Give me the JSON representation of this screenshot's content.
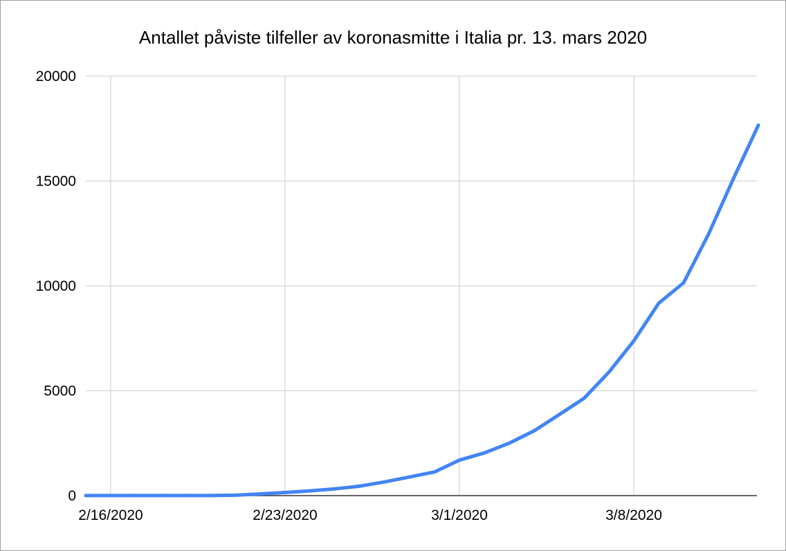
{
  "chart_data": {
    "type": "line",
    "title": "Antallet påviste tilfeller av koronasmitte i Italia pr. 13. mars 2020",
    "xlabel": "",
    "ylabel": "",
    "x_tick_labels": [
      "2/16/2020",
      "2/23/2020",
      "3/1/2020",
      "3/8/2020"
    ],
    "y_tick_labels": [
      "0",
      "5000",
      "10000",
      "15000",
      "20000"
    ],
    "ylim": [
      0,
      20000
    ],
    "grid": true,
    "legend": "none",
    "line_color": "#4285f4",
    "series": [
      {
        "x": [
          "2/15/2020",
          "2/16/2020",
          "2/17/2020",
          "2/18/2020",
          "2/19/2020",
          "2/20/2020",
          "2/21/2020",
          "2/22/2020",
          "2/23/2020",
          "2/24/2020",
          "2/25/2020",
          "2/26/2020",
          "2/27/2020",
          "2/28/2020",
          "2/29/2020",
          "3/1/2020",
          "3/2/2020",
          "3/3/2020",
          "3/4/2020",
          "3/5/2020",
          "3/6/2020",
          "3/7/2020",
          "3/8/2020",
          "3/9/2020",
          "3/10/2020",
          "3/11/2020",
          "3/12/2020",
          "3/13/2020"
        ],
        "values": [
          3,
          3,
          3,
          3,
          3,
          3,
          20,
          79,
          150,
          229,
          322,
          453,
          655,
          888,
          1128,
          1694,
          2036,
          2502,
          3089,
          3858,
          4636,
          5883,
          7375,
          9172,
          10149,
          12462,
          15113,
          17660
        ]
      }
    ]
  }
}
